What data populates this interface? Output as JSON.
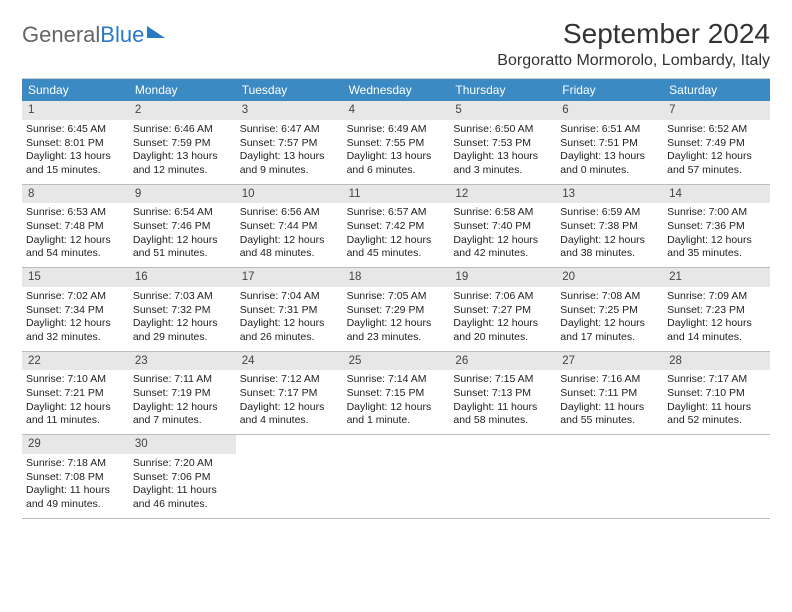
{
  "brand": {
    "part1": "General",
    "part2": "Blue"
  },
  "title": "September 2024",
  "location": "Borgoratto Mormorolo, Lombardy, Italy",
  "colors": {
    "header_bg": "#3b8ac4",
    "header_text": "#ffffff",
    "daynum_bg": "#e7e7e7",
    "border": "#bcbcbc",
    "brand_accent": "#2b79c2",
    "page_bg": "#ffffff"
  },
  "weekdays": [
    "Sunday",
    "Monday",
    "Tuesday",
    "Wednesday",
    "Thursday",
    "Friday",
    "Saturday"
  ],
  "days": [
    {
      "n": "1",
      "sunrise": "6:45 AM",
      "sunset": "8:01 PM",
      "daylight": "13 hours and 15 minutes."
    },
    {
      "n": "2",
      "sunrise": "6:46 AM",
      "sunset": "7:59 PM",
      "daylight": "13 hours and 12 minutes."
    },
    {
      "n": "3",
      "sunrise": "6:47 AM",
      "sunset": "7:57 PM",
      "daylight": "13 hours and 9 minutes."
    },
    {
      "n": "4",
      "sunrise": "6:49 AM",
      "sunset": "7:55 PM",
      "daylight": "13 hours and 6 minutes."
    },
    {
      "n": "5",
      "sunrise": "6:50 AM",
      "sunset": "7:53 PM",
      "daylight": "13 hours and 3 minutes."
    },
    {
      "n": "6",
      "sunrise": "6:51 AM",
      "sunset": "7:51 PM",
      "daylight": "13 hours and 0 minutes."
    },
    {
      "n": "7",
      "sunrise": "6:52 AM",
      "sunset": "7:49 PM",
      "daylight": "12 hours and 57 minutes."
    },
    {
      "n": "8",
      "sunrise": "6:53 AM",
      "sunset": "7:48 PM",
      "daylight": "12 hours and 54 minutes."
    },
    {
      "n": "9",
      "sunrise": "6:54 AM",
      "sunset": "7:46 PM",
      "daylight": "12 hours and 51 minutes."
    },
    {
      "n": "10",
      "sunrise": "6:56 AM",
      "sunset": "7:44 PM",
      "daylight": "12 hours and 48 minutes."
    },
    {
      "n": "11",
      "sunrise": "6:57 AM",
      "sunset": "7:42 PM",
      "daylight": "12 hours and 45 minutes."
    },
    {
      "n": "12",
      "sunrise": "6:58 AM",
      "sunset": "7:40 PM",
      "daylight": "12 hours and 42 minutes."
    },
    {
      "n": "13",
      "sunrise": "6:59 AM",
      "sunset": "7:38 PM",
      "daylight": "12 hours and 38 minutes."
    },
    {
      "n": "14",
      "sunrise": "7:00 AM",
      "sunset": "7:36 PM",
      "daylight": "12 hours and 35 minutes."
    },
    {
      "n": "15",
      "sunrise": "7:02 AM",
      "sunset": "7:34 PM",
      "daylight": "12 hours and 32 minutes."
    },
    {
      "n": "16",
      "sunrise": "7:03 AM",
      "sunset": "7:32 PM",
      "daylight": "12 hours and 29 minutes."
    },
    {
      "n": "17",
      "sunrise": "7:04 AM",
      "sunset": "7:31 PM",
      "daylight": "12 hours and 26 minutes."
    },
    {
      "n": "18",
      "sunrise": "7:05 AM",
      "sunset": "7:29 PM",
      "daylight": "12 hours and 23 minutes."
    },
    {
      "n": "19",
      "sunrise": "7:06 AM",
      "sunset": "7:27 PM",
      "daylight": "12 hours and 20 minutes."
    },
    {
      "n": "20",
      "sunrise": "7:08 AM",
      "sunset": "7:25 PM",
      "daylight": "12 hours and 17 minutes."
    },
    {
      "n": "21",
      "sunrise": "7:09 AM",
      "sunset": "7:23 PM",
      "daylight": "12 hours and 14 minutes."
    },
    {
      "n": "22",
      "sunrise": "7:10 AM",
      "sunset": "7:21 PM",
      "daylight": "12 hours and 11 minutes."
    },
    {
      "n": "23",
      "sunrise": "7:11 AM",
      "sunset": "7:19 PM",
      "daylight": "12 hours and 7 minutes."
    },
    {
      "n": "24",
      "sunrise": "7:12 AM",
      "sunset": "7:17 PM",
      "daylight": "12 hours and 4 minutes."
    },
    {
      "n": "25",
      "sunrise": "7:14 AM",
      "sunset": "7:15 PM",
      "daylight": "12 hours and 1 minute."
    },
    {
      "n": "26",
      "sunrise": "7:15 AM",
      "sunset": "7:13 PM",
      "daylight": "11 hours and 58 minutes."
    },
    {
      "n": "27",
      "sunrise": "7:16 AM",
      "sunset": "7:11 PM",
      "daylight": "11 hours and 55 minutes."
    },
    {
      "n": "28",
      "sunrise": "7:17 AM",
      "sunset": "7:10 PM",
      "daylight": "11 hours and 52 minutes."
    },
    {
      "n": "29",
      "sunrise": "7:18 AM",
      "sunset": "7:08 PM",
      "daylight": "11 hours and 49 minutes."
    },
    {
      "n": "30",
      "sunrise": "7:20 AM",
      "sunset": "7:06 PM",
      "daylight": "11 hours and 46 minutes."
    }
  ],
  "labels": {
    "sunrise": "Sunrise:",
    "sunset": "Sunset:",
    "daylight": "Daylight:"
  }
}
